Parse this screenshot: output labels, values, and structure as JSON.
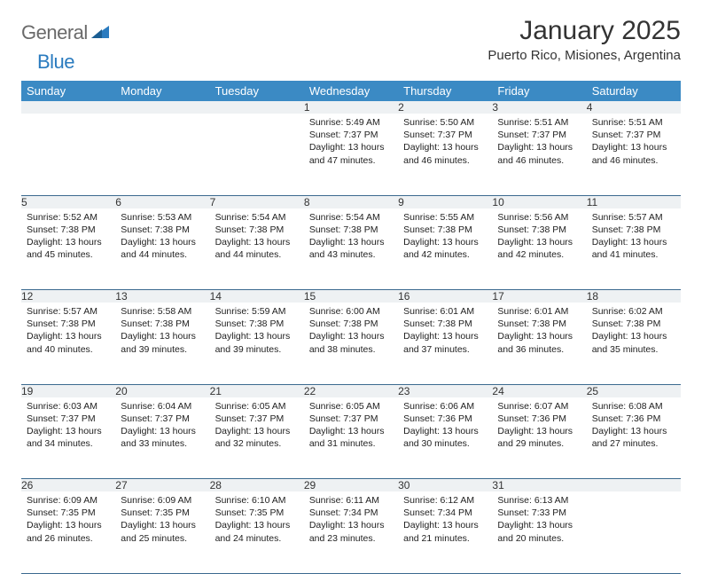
{
  "brand": {
    "part1": "General",
    "part2": "Blue"
  },
  "title": "January 2025",
  "location": "Puerto Rico, Misiones, Argentina",
  "colors": {
    "header_bg": "#3b8ac4",
    "header_fg": "#ffffff",
    "daynum_bg": "#eef1f3",
    "row_border": "#3b6a8f",
    "logo_gray": "#6a6a6a",
    "logo_blue": "#2a7bbf"
  },
  "weekdays": [
    "Sunday",
    "Monday",
    "Tuesday",
    "Wednesday",
    "Thursday",
    "Friday",
    "Saturday"
  ],
  "weeks": [
    [
      {
        "n": "",
        "lines": []
      },
      {
        "n": "",
        "lines": []
      },
      {
        "n": "",
        "lines": []
      },
      {
        "n": "1",
        "lines": [
          "Sunrise: 5:49 AM",
          "Sunset: 7:37 PM",
          "Daylight: 13 hours and 47 minutes."
        ]
      },
      {
        "n": "2",
        "lines": [
          "Sunrise: 5:50 AM",
          "Sunset: 7:37 PM",
          "Daylight: 13 hours and 46 minutes."
        ]
      },
      {
        "n": "3",
        "lines": [
          "Sunrise: 5:51 AM",
          "Sunset: 7:37 PM",
          "Daylight: 13 hours and 46 minutes."
        ]
      },
      {
        "n": "4",
        "lines": [
          "Sunrise: 5:51 AM",
          "Sunset: 7:37 PM",
          "Daylight: 13 hours and 46 minutes."
        ]
      }
    ],
    [
      {
        "n": "5",
        "lines": [
          "Sunrise: 5:52 AM",
          "Sunset: 7:38 PM",
          "Daylight: 13 hours and 45 minutes."
        ]
      },
      {
        "n": "6",
        "lines": [
          "Sunrise: 5:53 AM",
          "Sunset: 7:38 PM",
          "Daylight: 13 hours and 44 minutes."
        ]
      },
      {
        "n": "7",
        "lines": [
          "Sunrise: 5:54 AM",
          "Sunset: 7:38 PM",
          "Daylight: 13 hours and 44 minutes."
        ]
      },
      {
        "n": "8",
        "lines": [
          "Sunrise: 5:54 AM",
          "Sunset: 7:38 PM",
          "Daylight: 13 hours and 43 minutes."
        ]
      },
      {
        "n": "9",
        "lines": [
          "Sunrise: 5:55 AM",
          "Sunset: 7:38 PM",
          "Daylight: 13 hours and 42 minutes."
        ]
      },
      {
        "n": "10",
        "lines": [
          "Sunrise: 5:56 AM",
          "Sunset: 7:38 PM",
          "Daylight: 13 hours and 42 minutes."
        ]
      },
      {
        "n": "11",
        "lines": [
          "Sunrise: 5:57 AM",
          "Sunset: 7:38 PM",
          "Daylight: 13 hours and 41 minutes."
        ]
      }
    ],
    [
      {
        "n": "12",
        "lines": [
          "Sunrise: 5:57 AM",
          "Sunset: 7:38 PM",
          "Daylight: 13 hours and 40 minutes."
        ]
      },
      {
        "n": "13",
        "lines": [
          "Sunrise: 5:58 AM",
          "Sunset: 7:38 PM",
          "Daylight: 13 hours and 39 minutes."
        ]
      },
      {
        "n": "14",
        "lines": [
          "Sunrise: 5:59 AM",
          "Sunset: 7:38 PM",
          "Daylight: 13 hours and 39 minutes."
        ]
      },
      {
        "n": "15",
        "lines": [
          "Sunrise: 6:00 AM",
          "Sunset: 7:38 PM",
          "Daylight: 13 hours and 38 minutes."
        ]
      },
      {
        "n": "16",
        "lines": [
          "Sunrise: 6:01 AM",
          "Sunset: 7:38 PM",
          "Daylight: 13 hours and 37 minutes."
        ]
      },
      {
        "n": "17",
        "lines": [
          "Sunrise: 6:01 AM",
          "Sunset: 7:38 PM",
          "Daylight: 13 hours and 36 minutes."
        ]
      },
      {
        "n": "18",
        "lines": [
          "Sunrise: 6:02 AM",
          "Sunset: 7:38 PM",
          "Daylight: 13 hours and 35 minutes."
        ]
      }
    ],
    [
      {
        "n": "19",
        "lines": [
          "Sunrise: 6:03 AM",
          "Sunset: 7:37 PM",
          "Daylight: 13 hours and 34 minutes."
        ]
      },
      {
        "n": "20",
        "lines": [
          "Sunrise: 6:04 AM",
          "Sunset: 7:37 PM",
          "Daylight: 13 hours and 33 minutes."
        ]
      },
      {
        "n": "21",
        "lines": [
          "Sunrise: 6:05 AM",
          "Sunset: 7:37 PM",
          "Daylight: 13 hours and 32 minutes."
        ]
      },
      {
        "n": "22",
        "lines": [
          "Sunrise: 6:05 AM",
          "Sunset: 7:37 PM",
          "Daylight: 13 hours and 31 minutes."
        ]
      },
      {
        "n": "23",
        "lines": [
          "Sunrise: 6:06 AM",
          "Sunset: 7:36 PM",
          "Daylight: 13 hours and 30 minutes."
        ]
      },
      {
        "n": "24",
        "lines": [
          "Sunrise: 6:07 AM",
          "Sunset: 7:36 PM",
          "Daylight: 13 hours and 29 minutes."
        ]
      },
      {
        "n": "25",
        "lines": [
          "Sunrise: 6:08 AM",
          "Sunset: 7:36 PM",
          "Daylight: 13 hours and 27 minutes."
        ]
      }
    ],
    [
      {
        "n": "26",
        "lines": [
          "Sunrise: 6:09 AM",
          "Sunset: 7:35 PM",
          "Daylight: 13 hours and 26 minutes."
        ]
      },
      {
        "n": "27",
        "lines": [
          "Sunrise: 6:09 AM",
          "Sunset: 7:35 PM",
          "Daylight: 13 hours and 25 minutes."
        ]
      },
      {
        "n": "28",
        "lines": [
          "Sunrise: 6:10 AM",
          "Sunset: 7:35 PM",
          "Daylight: 13 hours and 24 minutes."
        ]
      },
      {
        "n": "29",
        "lines": [
          "Sunrise: 6:11 AM",
          "Sunset: 7:34 PM",
          "Daylight: 13 hours and 23 minutes."
        ]
      },
      {
        "n": "30",
        "lines": [
          "Sunrise: 6:12 AM",
          "Sunset: 7:34 PM",
          "Daylight: 13 hours and 21 minutes."
        ]
      },
      {
        "n": "31",
        "lines": [
          "Sunrise: 6:13 AM",
          "Sunset: 7:33 PM",
          "Daylight: 13 hours and 20 minutes."
        ]
      },
      {
        "n": "",
        "lines": []
      }
    ]
  ]
}
